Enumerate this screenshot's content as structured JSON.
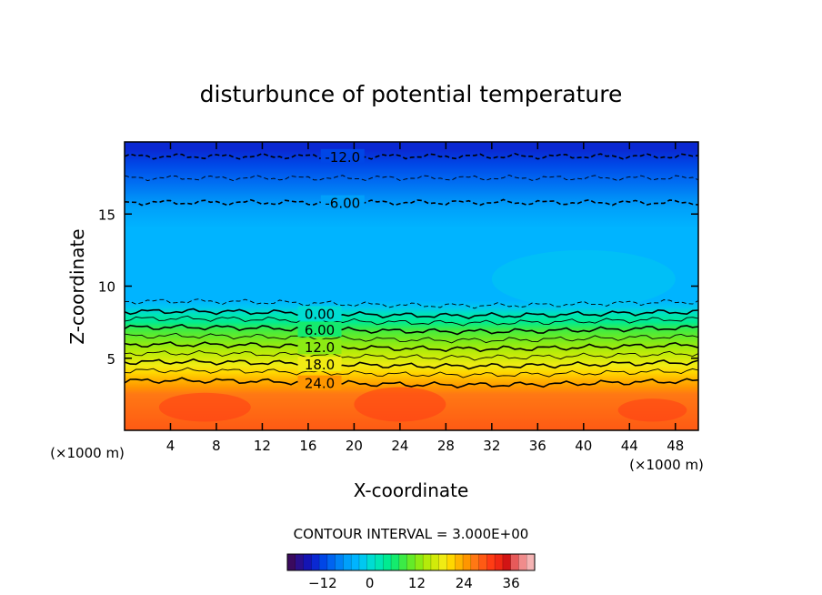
{
  "chart_data": {
    "type": "heatmap",
    "title": "disturbunce of potential temperature",
    "xlabel": "X-coordinate",
    "ylabel": "Z-coordinate",
    "x_unit": "(×1000 m)",
    "y_unit": "(×1000 m)",
    "xlim": [
      0,
      50
    ],
    "ylim": [
      0,
      20
    ],
    "x_ticks": [
      4,
      8,
      12,
      16,
      20,
      24,
      28,
      32,
      36,
      40,
      44,
      48
    ],
    "y_ticks": [
      5,
      10,
      15
    ],
    "contour_interval_label": "CONTOUR INTERVAL = 3.000E+00",
    "contour_labels": [
      {
        "text": "-12.0",
        "value": -12,
        "x": 19,
        "z": 19.0
      },
      {
        "text": "-6.00",
        "value": -6,
        "x": 19,
        "z": 15.8
      },
      {
        "text": "0.00",
        "value": 0,
        "x": 17,
        "z": 8.1
      },
      {
        "text": "6.00",
        "value": 6,
        "x": 17,
        "z": 7.0
      },
      {
        "text": "12.0",
        "value": 12,
        "x": 17,
        "z": 5.8
      },
      {
        "text": "18.0",
        "value": 18,
        "x": 17,
        "z": 4.6
      },
      {
        "text": "24.0",
        "value": 24,
        "x": 17,
        "z": 3.3
      }
    ],
    "colorbar": {
      "ticks": [
        -12,
        0,
        12,
        24,
        36
      ],
      "min": -21,
      "max": 42,
      "colors": [
        "#3a0a5e",
        "#2a0f8c",
        "#1414b4",
        "#0a28d2",
        "#0046e6",
        "#0064f0",
        "#0082f5",
        "#00a0fa",
        "#00b4ff",
        "#00c8f0",
        "#00dcd2",
        "#00e6b4",
        "#00eb91",
        "#14eb6e",
        "#3ceb46",
        "#64eb28",
        "#8ceb14",
        "#b4eb0a",
        "#d2eb0a",
        "#f0eb14",
        "#ffd700",
        "#ffb400",
        "#ff9600",
        "#ff7814",
        "#ff5a14",
        "#ff3c14",
        "#f02814",
        "#d21414",
        "#e65a5a",
        "#f08c8c",
        "#f5b4b4"
      ]
    },
    "temperature_profile": [
      {
        "z": 0,
        "value": 28
      },
      {
        "z": 2.5,
        "value": 27
      },
      {
        "z": 3.0,
        "value": 25.5
      },
      {
        "z": 3.5,
        "value": 23
      },
      {
        "z": 4.0,
        "value": 20.5
      },
      {
        "z": 4.5,
        "value": 18.5
      },
      {
        "z": 5.0,
        "value": 16.5
      },
      {
        "z": 5.5,
        "value": 14
      },
      {
        "z": 6.0,
        "value": 12
      },
      {
        "z": 6.5,
        "value": 10
      },
      {
        "z": 7.0,
        "value": 8
      },
      {
        "z": 7.5,
        "value": 5
      },
      {
        "z": 8.0,
        "value": 2
      },
      {
        "z": 8.5,
        "value": -1
      },
      {
        "z": 9.0,
        "value": -3
      },
      {
        "z": 12.0,
        "value": -3.5
      },
      {
        "z": 14.0,
        "value": -4
      },
      {
        "z": 15.5,
        "value": -5.5
      },
      {
        "z": 16.5,
        "value": -7
      },
      {
        "z": 17.5,
        "value": -9
      },
      {
        "z": 18.5,
        "value": -11
      },
      {
        "z": 19.5,
        "value": -13
      },
      {
        "z": 20.0,
        "value": -14
      }
    ],
    "contour_lines": [
      {
        "value": -12,
        "z": 19.0,
        "style": "dashed"
      },
      {
        "value": -9,
        "z": 17.5,
        "style": "dashed"
      },
      {
        "value": -6,
        "z": 15.8,
        "style": "dashed"
      },
      {
        "value": -3,
        "z": 8.8,
        "style": "dashed"
      },
      {
        "value": 0,
        "z": 8.1,
        "style": "solid"
      },
      {
        "value": 3,
        "z": 7.6,
        "style": "solid"
      },
      {
        "value": 6,
        "z": 7.0,
        "style": "solid"
      },
      {
        "value": 9,
        "z": 6.4,
        "style": "solid"
      },
      {
        "value": 12,
        "z": 5.8,
        "style": "solid"
      },
      {
        "value": 15,
        "z": 5.2,
        "style": "solid"
      },
      {
        "value": 18,
        "z": 4.6,
        "style": "solid"
      },
      {
        "value": 21,
        "z": 4.0,
        "style": "solid"
      },
      {
        "value": 24,
        "z": 3.3,
        "style": "solid"
      }
    ]
  }
}
